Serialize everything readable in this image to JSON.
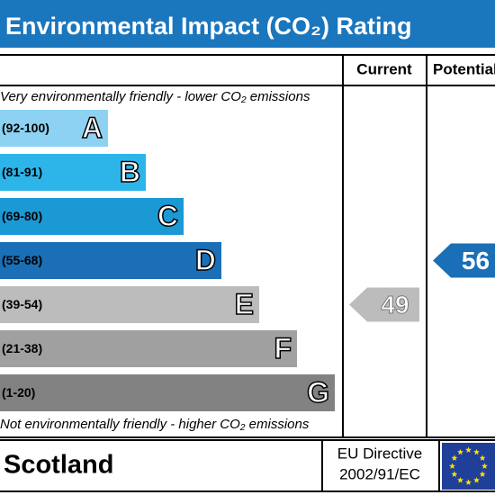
{
  "header": {
    "title": "Environmental Impact (CO₂) Rating"
  },
  "columns": {
    "current": "Current",
    "potential": "Potential"
  },
  "top_note": "Very environmentally friendly - lower CO₂ emissions",
  "bottom_note": "Not environmentally friendly - higher CO₂ emissions",
  "bands": [
    {
      "range": "(92-100)",
      "letter": "A",
      "color": "#8dd2f2"
    },
    {
      "range": "(81-91)",
      "letter": "B",
      "color": "#2db5ea"
    },
    {
      "range": "(69-80)",
      "letter": "C",
      "color": "#1b99d5"
    },
    {
      "range": "(55-68)",
      "letter": "D",
      "color": "#1a6fb6"
    },
    {
      "range": "(39-54)",
      "letter": "E",
      "color": "#bcbcbc"
    },
    {
      "range": "(21-38)",
      "letter": "F",
      "color": "#a0a0a0"
    },
    {
      "range": "(1-20)",
      "letter": "G",
      "color": "#828282"
    }
  ],
  "current": {
    "value": 49,
    "color": "#bcbcbc"
  },
  "potential": {
    "value": 56,
    "color": "#1a6fb6"
  },
  "footer": {
    "country": "Scotland",
    "directive_line1": "EU Directive",
    "directive_line2": "2002/91/EC"
  }
}
